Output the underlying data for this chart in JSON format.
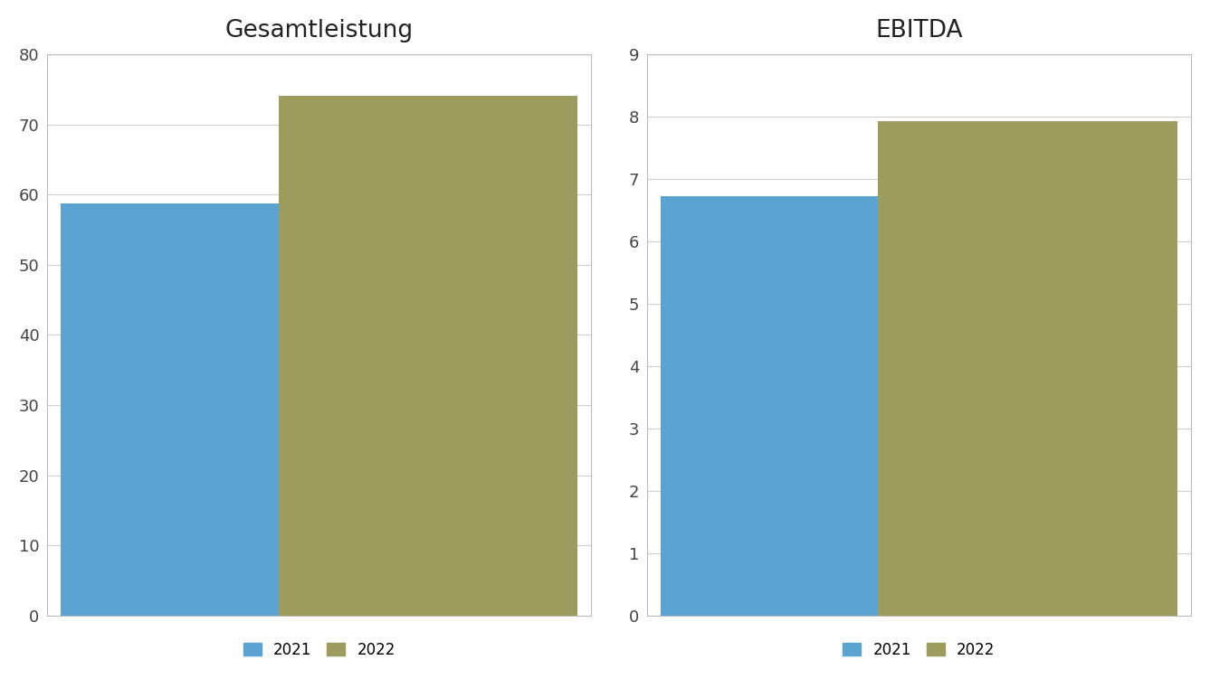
{
  "chart1": {
    "title": "Gesamtleistung",
    "categories": [
      "2021",
      "2022"
    ],
    "values": [
      58.8,
      74.1
    ],
    "colors": [
      "#5BA3D0",
      "#9C9C5E"
    ],
    "ylim": [
      0,
      80
    ],
    "yticks": [
      0,
      10,
      20,
      30,
      40,
      50,
      60,
      70,
      80
    ]
  },
  "chart2": {
    "title": "EBITDA",
    "categories": [
      "2021",
      "2022"
    ],
    "values": [
      6.72,
      7.93
    ],
    "colors": [
      "#5BA3D0",
      "#9C9C5E"
    ],
    "ylim": [
      0,
      9
    ],
    "yticks": [
      0,
      1,
      2,
      3,
      4,
      5,
      6,
      7,
      8,
      9
    ]
  },
  "legend_labels": [
    "2021",
    "2022"
  ],
  "legend_colors": [
    "#5BA3D0",
    "#9C9C5E"
  ],
  "background_color": "#FFFFFF",
  "panel_facecolor": "#FFFFFF",
  "bar_width": 0.55,
  "title_fontsize": 19,
  "tick_fontsize": 13,
  "legend_fontsize": 12,
  "grid_color": "#D0D0D0",
  "spine_color": "#BBBBBB"
}
